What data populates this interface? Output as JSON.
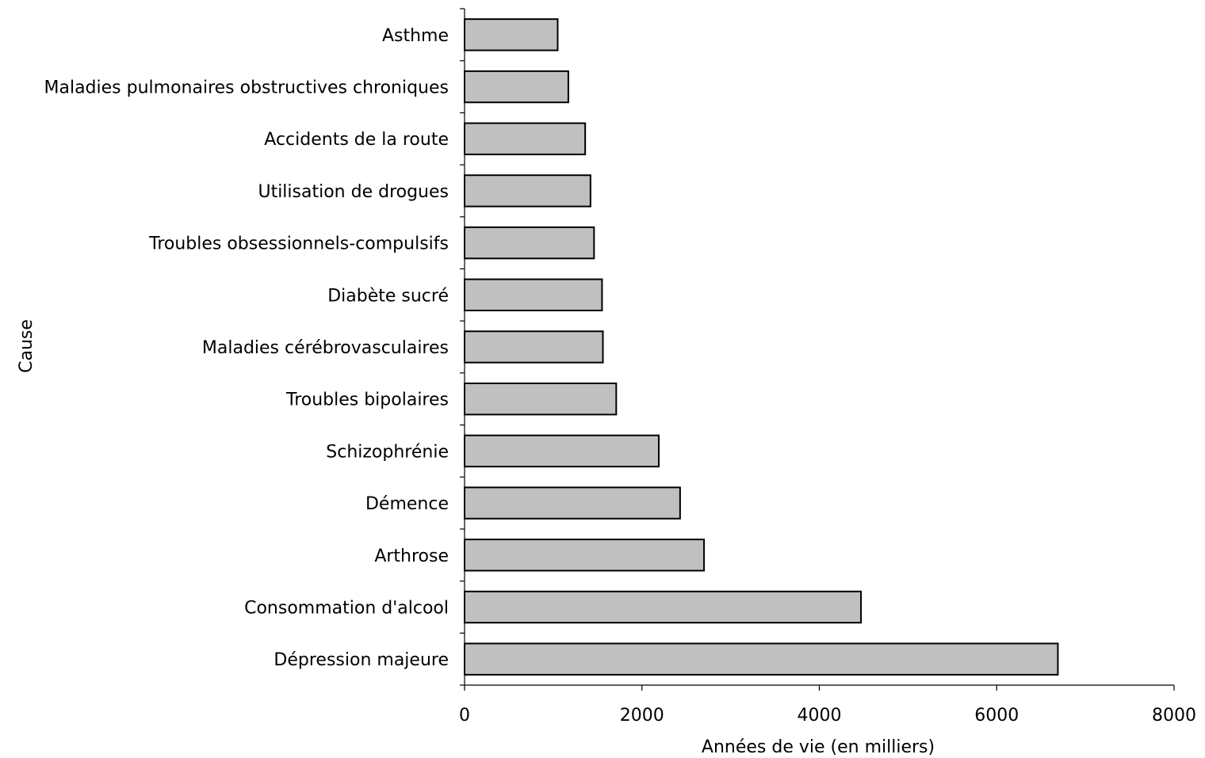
{
  "chart_data": {
    "type": "bar",
    "orientation": "horizontal",
    "title": "",
    "xlabel": "Années de vie (en milliers)",
    "ylabel": "Cause",
    "xlim": [
      0,
      8000
    ],
    "x_ticks": [
      "0",
      "2000",
      "4000",
      "6000",
      "8000"
    ],
    "grid": false,
    "legend": "none",
    "colors": {
      "bar_fill": "#c0c0c0",
      "bar_stroke": "#000000",
      "axis": "#000000"
    },
    "categories": [
      "Asthme",
      "Maladies pulmonaires obstructives chroniques",
      "Accidents de la route",
      "Utilisation de drogues",
      "Troubles obsessionnels-compulsifs",
      "Diabète sucré",
      "Maladies cérébrovasculaires",
      "Troubles bipolaires",
      "Schizophrénie",
      "Démence",
      "Arthrose",
      "Consommation d'alcool",
      "Dépression majeure"
    ],
    "values": [
      1050,
      1170,
      1360,
      1420,
      1460,
      1550,
      1560,
      1710,
      2190,
      2430,
      2700,
      4470,
      6690
    ]
  }
}
